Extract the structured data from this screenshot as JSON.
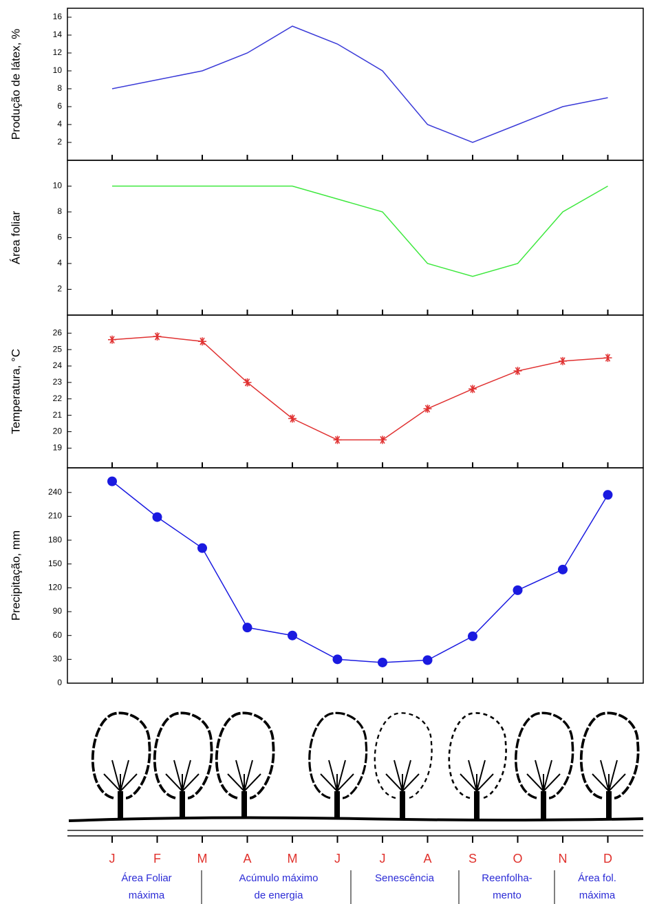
{
  "months": [
    "J",
    "F",
    "M",
    "A",
    "M",
    "J",
    "J",
    "A",
    "S",
    "O",
    "N",
    "D"
  ],
  "phases": [
    [
      "Área Foliar",
      "máxima"
    ],
    [
      "Acúmulo máximo",
      "de energia"
    ],
    [
      "Senescência"
    ],
    [
      "Reenfolha-",
      "mento"
    ],
    [
      "Área fol.",
      "máxima"
    ]
  ],
  "chart_data": [
    {
      "type": "line",
      "y_label": "Produção de látex, %",
      "color": "#3a3ad8",
      "marker": "none",
      "values": [
        8,
        9,
        10,
        12,
        15,
        13,
        10,
        4,
        2,
        4,
        6,
        7
      ],
      "ylim": [
        0,
        17
      ],
      "yticks": [
        2,
        4,
        6,
        8,
        10,
        12,
        14,
        16
      ]
    },
    {
      "type": "line",
      "y_label": "Área foliar",
      "color": "#3ee83e",
      "marker": "none",
      "values": [
        10,
        10,
        10,
        10,
        10,
        9,
        8,
        4,
        3,
        4,
        8,
        10
      ],
      "ylim": [
        0,
        12
      ],
      "yticks": [
        2,
        4,
        6,
        8,
        10
      ]
    },
    {
      "type": "line",
      "y_label": "Temperatura, °C",
      "color": "#e03030",
      "marker": "asterisk",
      "values": [
        25.6,
        25.8,
        25.5,
        23.0,
        20.8,
        19.5,
        19.5,
        21.4,
        22.6,
        23.7,
        24.3,
        24.5
      ],
      "ylim": [
        17.8,
        27.1
      ],
      "yticks": [
        19,
        20,
        21,
        22,
        23,
        24,
        25,
        26
      ]
    },
    {
      "type": "line",
      "y_label": "Precipitação, mm",
      "color": "#1a1ae0",
      "marker": "circle",
      "values": [
        254,
        209,
        170,
        70,
        60,
        30,
        26,
        29,
        59,
        117,
        143,
        237
      ],
      "ylim": [
        0,
        271
      ],
      "yticks": [
        0,
        30,
        60,
        90,
        120,
        150,
        180,
        210,
        240
      ]
    }
  ]
}
